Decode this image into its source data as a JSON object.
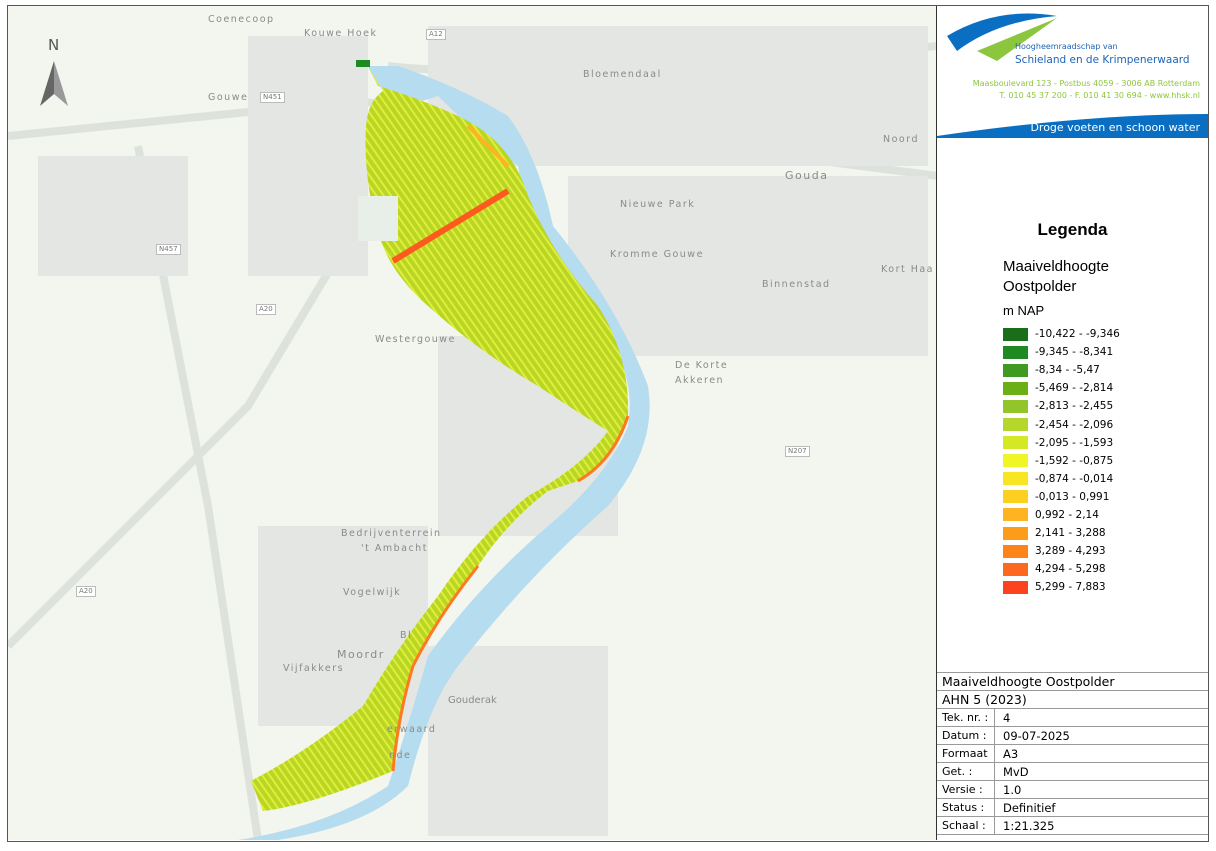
{
  "map": {
    "north_label": "N",
    "place_labels": [
      "Coenecoop",
      "Kouwe Hoek",
      "Gouwe",
      "Bloemendaal",
      "Gouda",
      "Noord",
      "Nieuwe Park",
      "Kromme Gouwe",
      "Binnenstad",
      "Kort Haa",
      "Westergouwe",
      "De Korte",
      "Akkeren",
      "Bedrijventerrein",
      "'t Ambacht",
      "Vogelwijk",
      "Moordr",
      "Vijfakkers",
      "Gouderak",
      "erwaard",
      "nde",
      "Bl"
    ],
    "road_labels": [
      "A12",
      "N451",
      "N457",
      "A20",
      "N207",
      "A20"
    ]
  },
  "header": {
    "org_line1": "Hoogheemraadschap van",
    "org_line2": "Schieland en de Krimpenerwaard",
    "address": "Maasboulevard 123 - Postbus 4059 - 3006 AB Rotterdam",
    "contact": "T. 010 45 37 200 - F. 010 41 30 694 - www.hhsk.nl",
    "slogan": "Droge voeten en schoon water",
    "brand_blue": "#0a6fc2",
    "brand_green": "#8cc63e"
  },
  "legend": {
    "title": "Legenda",
    "layer_line1": "Maaiveldhoogte",
    "layer_line2": "Oostpolder",
    "unit": "m NAP",
    "classes": [
      {
        "label": "-10,422 - -9,346",
        "color": "#1a6e1a"
      },
      {
        "label": "-9,345 - -8,341",
        "color": "#1f8a22"
      },
      {
        "label": "-8,34 - -5,47",
        "color": "#3f9a22"
      },
      {
        "label": "-5,469 - -2,814",
        "color": "#6aaf16"
      },
      {
        "label": "-2,813 - -2,455",
        "color": "#92c52a"
      },
      {
        "label": "-2,454 - -2,096",
        "color": "#b5d62a"
      },
      {
        "label": "-2,095 - -1,593",
        "color": "#d4e826"
      },
      {
        "label": "-1,592 - -0,875",
        "color": "#f0f626"
      },
      {
        "label": "-0,874 - -0,014",
        "color": "#f8e622"
      },
      {
        "label": "-0,013 - 0,991",
        "color": "#fdd020"
      },
      {
        "label": "0,992 - 2,14",
        "color": "#fdb420"
      },
      {
        "label": "2,141 - 3,288",
        "color": "#fd9c18"
      },
      {
        "label": "3,289 - 4,293",
        "color": "#fd8418"
      },
      {
        "label": "4,294 - 5,298",
        "color": "#fd6820"
      },
      {
        "label": "5,299 - 7,883",
        "color": "#fd4220"
      }
    ]
  },
  "titleblock": {
    "title": "Maaiveldhoogte Oostpolder",
    "subtitle": "AHN 5 (2023)",
    "rows": [
      {
        "k": "Tek. nr. :",
        "v": "4"
      },
      {
        "k": "Datum :",
        "v": "09-07-2025"
      },
      {
        "k": "Formaat",
        "v": "A3"
      },
      {
        "k": "Get. :",
        "v": "MvD"
      },
      {
        "k": "Versie :",
        "v": "1.0"
      },
      {
        "k": "Status :",
        "v": "Definitief"
      },
      {
        "k": "Schaal :",
        "v": "1:21.325"
      }
    ]
  }
}
